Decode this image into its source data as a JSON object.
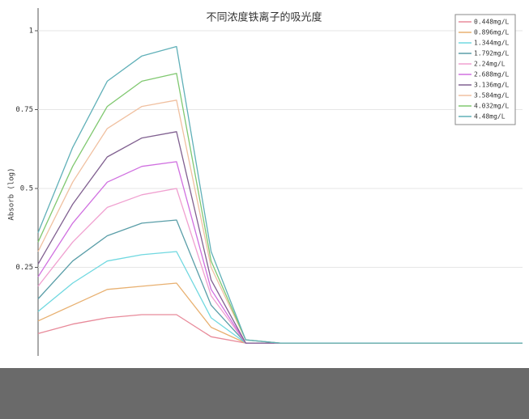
{
  "chart_data": {
    "type": "line",
    "title": "不同浓度铁离子的吸光度",
    "y_label": "Absorb (log)",
    "categories": [
      null,
      null,
      null,
      null,
      null,
      null,
      null,
      null,
      null,
      null,
      null,
      null,
      null,
      null,
      null
    ],
    "ylim": [
      0,
      1.05
    ],
    "yticks": [
      0.25,
      0.5,
      0.75,
      1
    ],
    "grid": true,
    "legend": "top-right",
    "series": [
      {
        "name": "0.448mg/L",
        "color": "#e88a9a",
        "values": [
          0.04,
          0.07,
          0.09,
          0.1,
          0.1,
          0.03,
          0.01,
          0.01,
          0.01,
          0.01,
          0.01,
          0.01,
          0.01,
          0.01,
          0.01
        ]
      },
      {
        "name": "0.896mg/L",
        "color": "#e8b070",
        "values": [
          0.08,
          0.13,
          0.18,
          0.19,
          0.2,
          0.06,
          0.01,
          0.01,
          0.01,
          0.01,
          0.01,
          0.01,
          0.01,
          0.01,
          0.01
        ]
      },
      {
        "name": "1.344mg/L",
        "color": "#70d8e0",
        "values": [
          0.11,
          0.2,
          0.27,
          0.29,
          0.3,
          0.09,
          0.01,
          0.01,
          0.01,
          0.01,
          0.01,
          0.01,
          0.01,
          0.01,
          0.01
        ]
      },
      {
        "name": "1.792mg/L",
        "color": "#5a9ea8",
        "values": [
          0.15,
          0.27,
          0.35,
          0.39,
          0.4,
          0.13,
          0.01,
          0.01,
          0.01,
          0.01,
          0.01,
          0.01,
          0.01,
          0.01,
          0.01
        ]
      },
      {
        "name": "2.24mg/L",
        "color": "#f0a0d0",
        "values": [
          0.19,
          0.33,
          0.44,
          0.48,
          0.5,
          0.16,
          0.01,
          0.01,
          0.01,
          0.01,
          0.01,
          0.01,
          0.01,
          0.01,
          0.01
        ]
      },
      {
        "name": "2.688mg/L",
        "color": "#d070e0",
        "values": [
          0.22,
          0.39,
          0.52,
          0.57,
          0.585,
          0.18,
          0.01,
          0.01,
          0.01,
          0.01,
          0.01,
          0.01,
          0.01,
          0.01,
          0.01
        ]
      },
      {
        "name": "3.136mg/L",
        "color": "#806090",
        "values": [
          0.26,
          0.45,
          0.6,
          0.66,
          0.68,
          0.21,
          0.01,
          0.01,
          0.01,
          0.01,
          0.01,
          0.01,
          0.01,
          0.01,
          0.01
        ]
      },
      {
        "name": "3.584mg/L",
        "color": "#f0c0a0",
        "values": [
          0.3,
          0.52,
          0.69,
          0.76,
          0.78,
          0.25,
          0.02,
          0.01,
          0.01,
          0.01,
          0.01,
          0.01,
          0.01,
          0.01,
          0.01
        ]
      },
      {
        "name": "4.032mg/L",
        "color": "#80c870",
        "values": [
          0.33,
          0.57,
          0.76,
          0.84,
          0.865,
          0.27,
          0.02,
          0.01,
          0.01,
          0.01,
          0.01,
          0.01,
          0.01,
          0.01,
          0.01
        ]
      },
      {
        "name": "4.48mg/L",
        "color": "#60b0b8",
        "values": [
          0.36,
          0.63,
          0.84,
          0.92,
          0.95,
          0.3,
          0.02,
          0.01,
          0.01,
          0.01,
          0.01,
          0.01,
          0.01,
          0.01,
          0.01
        ]
      }
    ]
  }
}
